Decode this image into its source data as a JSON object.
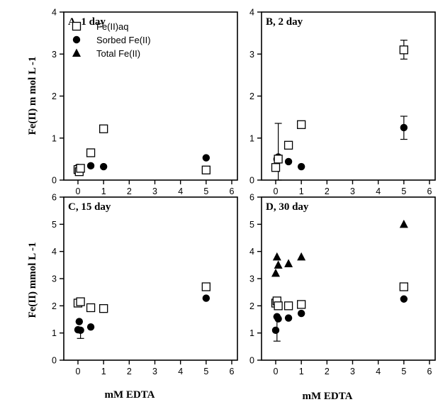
{
  "figure": {
    "ylabel_top": "Fe(II) m mol L -1",
    "ylabel_bottom": "Fe(II) mmol L -1",
    "xlabel_left": "mM EDTA",
    "xlabel_right": "mM EDTA"
  },
  "legend": [
    {
      "label": "Fe(II)aq",
      "marker": "open-square"
    },
    {
      "label": "Sorbed Fe(II)",
      "marker": "filled-circle"
    },
    {
      "label": "Total Fe(II)",
      "marker": "filled-triangle"
    }
  ],
  "chart_data": [
    {
      "type": "scatter",
      "title": "A, 1 day",
      "xlim": [
        0,
        6
      ],
      "ylim": [
        0,
        4
      ],
      "xticks": [
        "0",
        "1",
        "2",
        "3",
        "4",
        "5",
        "6"
      ],
      "yticks": [
        "0",
        "1",
        "2",
        "3",
        "4"
      ],
      "series": [
        {
          "name": "Fe(II)aq",
          "marker": "open-square",
          "points": [
            {
              "x": 0,
              "y": 0.25
            },
            {
              "x": 0.05,
              "y": 0.2
            },
            {
              "x": 0.1,
              "y": 0.28
            },
            {
              "x": 0.5,
              "y": 0.65
            },
            {
              "x": 1,
              "y": 1.22
            },
            {
              "x": 5,
              "y": 0.24
            }
          ]
        },
        {
          "name": "Sorbed Fe(II)",
          "marker": "filled-circle",
          "points": [
            {
              "x": 0,
              "y": 0.3
            },
            {
              "x": 0.05,
              "y": 0.22
            },
            {
              "x": 0.1,
              "y": 0.25
            },
            {
              "x": 0.5,
              "y": 0.34
            },
            {
              "x": 1,
              "y": 0.32
            },
            {
              "x": 5,
              "y": 0.53
            }
          ]
        }
      ],
      "errorbars": []
    },
    {
      "type": "scatter",
      "title": "B, 2 day",
      "xlim": [
        0,
        6
      ],
      "ylim": [
        0,
        4
      ],
      "xticks": [
        "0",
        "1",
        "2",
        "3",
        "4",
        "5",
        "6"
      ],
      "yticks": [
        "0",
        "1",
        "2",
        "3",
        "4"
      ],
      "series": [
        {
          "name": "Fe(II)aq",
          "marker": "open-square",
          "points": [
            {
              "x": 0,
              "y": 0.3
            },
            {
              "x": 0.1,
              "y": 0.5
            },
            {
              "x": 0.5,
              "y": 0.83
            },
            {
              "x": 1,
              "y": 1.32
            },
            {
              "x": 5,
              "y": 3.1
            }
          ]
        },
        {
          "name": "Sorbed Fe(II)",
          "marker": "filled-circle",
          "points": [
            {
              "x": 0.05,
              "y": 0.5
            },
            {
              "x": 0.1,
              "y": 0.55
            },
            {
              "x": 0.5,
              "y": 0.44
            },
            {
              "x": 1,
              "y": 0.32
            },
            {
              "x": 5,
              "y": 1.25
            }
          ]
        }
      ],
      "errorbars": [
        {
          "x": 0.1,
          "low": 0.0,
          "high": 1.35
        },
        {
          "x": 5,
          "low": 2.88,
          "high": 3.33
        },
        {
          "x": 5,
          "low": 0.97,
          "high": 1.52
        }
      ]
    },
    {
      "type": "scatter",
      "title": "C, 15 day",
      "xlim": [
        0,
        6
      ],
      "ylim": [
        0,
        6
      ],
      "xticks": [
        "0",
        "1",
        "2",
        "3",
        "4",
        "5",
        "6"
      ],
      "yticks": [
        "0",
        "1",
        "2",
        "3",
        "4",
        "5",
        "6"
      ],
      "series": [
        {
          "name": "Fe(II)aq",
          "marker": "open-square",
          "points": [
            {
              "x": 0,
              "y": 2.1
            },
            {
              "x": 0.1,
              "y": 2.15
            },
            {
              "x": 0.5,
              "y": 1.93
            },
            {
              "x": 1,
              "y": 1.9
            },
            {
              "x": 5,
              "y": 2.7
            }
          ]
        },
        {
          "name": "Sorbed Fe(II)",
          "marker": "filled-circle",
          "points": [
            {
              "x": 0,
              "y": 1.12
            },
            {
              "x": 0.05,
              "y": 1.42
            },
            {
              "x": 0.1,
              "y": 1.1
            },
            {
              "x": 0.5,
              "y": 1.22
            },
            {
              "x": 1,
              "y": 1.88
            },
            {
              "x": 5,
              "y": 2.28
            }
          ]
        }
      ],
      "errorbars": [
        {
          "x": 0.1,
          "low": 0.8,
          "high": 1.1
        }
      ]
    },
    {
      "type": "scatter",
      "title": "D, 30 day",
      "xlim": [
        0,
        6
      ],
      "ylim": [
        0,
        6
      ],
      "xticks": [
        "0",
        "1",
        "2",
        "3",
        "4",
        "5",
        "6"
      ],
      "yticks": [
        "0",
        "1",
        "2",
        "3",
        "4",
        "5",
        "6"
      ],
      "series": [
        {
          "name": "Fe(II)aq",
          "marker": "open-square",
          "points": [
            {
              "x": 0,
              "y": 2.1
            },
            {
              "x": 0.05,
              "y": 2.18
            },
            {
              "x": 0.1,
              "y": 2.0
            },
            {
              "x": 0.5,
              "y": 2.0
            },
            {
              "x": 1,
              "y": 2.05
            },
            {
              "x": 5,
              "y": 2.7
            }
          ]
        },
        {
          "name": "Sorbed Fe(II)",
          "marker": "filled-circle",
          "points": [
            {
              "x": 0,
              "y": 1.1
            },
            {
              "x": 0.05,
              "y": 1.6
            },
            {
              "x": 0.1,
              "y": 1.52
            },
            {
              "x": 0.5,
              "y": 1.55
            },
            {
              "x": 1,
              "y": 1.72
            },
            {
              "x": 5,
              "y": 2.25
            }
          ]
        },
        {
          "name": "Total Fe(II)",
          "marker": "filled-triangle",
          "points": [
            {
              "x": 0,
              "y": 3.2
            },
            {
              "x": 0.05,
              "y": 3.8
            },
            {
              "x": 0.1,
              "y": 3.5
            },
            {
              "x": 0.5,
              "y": 3.55
            },
            {
              "x": 1,
              "y": 3.8
            },
            {
              "x": 5,
              "y": 5.0
            }
          ]
        }
      ],
      "errorbars": [
        {
          "x": 0.05,
          "low": 0.7,
          "high": 1.6
        }
      ]
    }
  ]
}
